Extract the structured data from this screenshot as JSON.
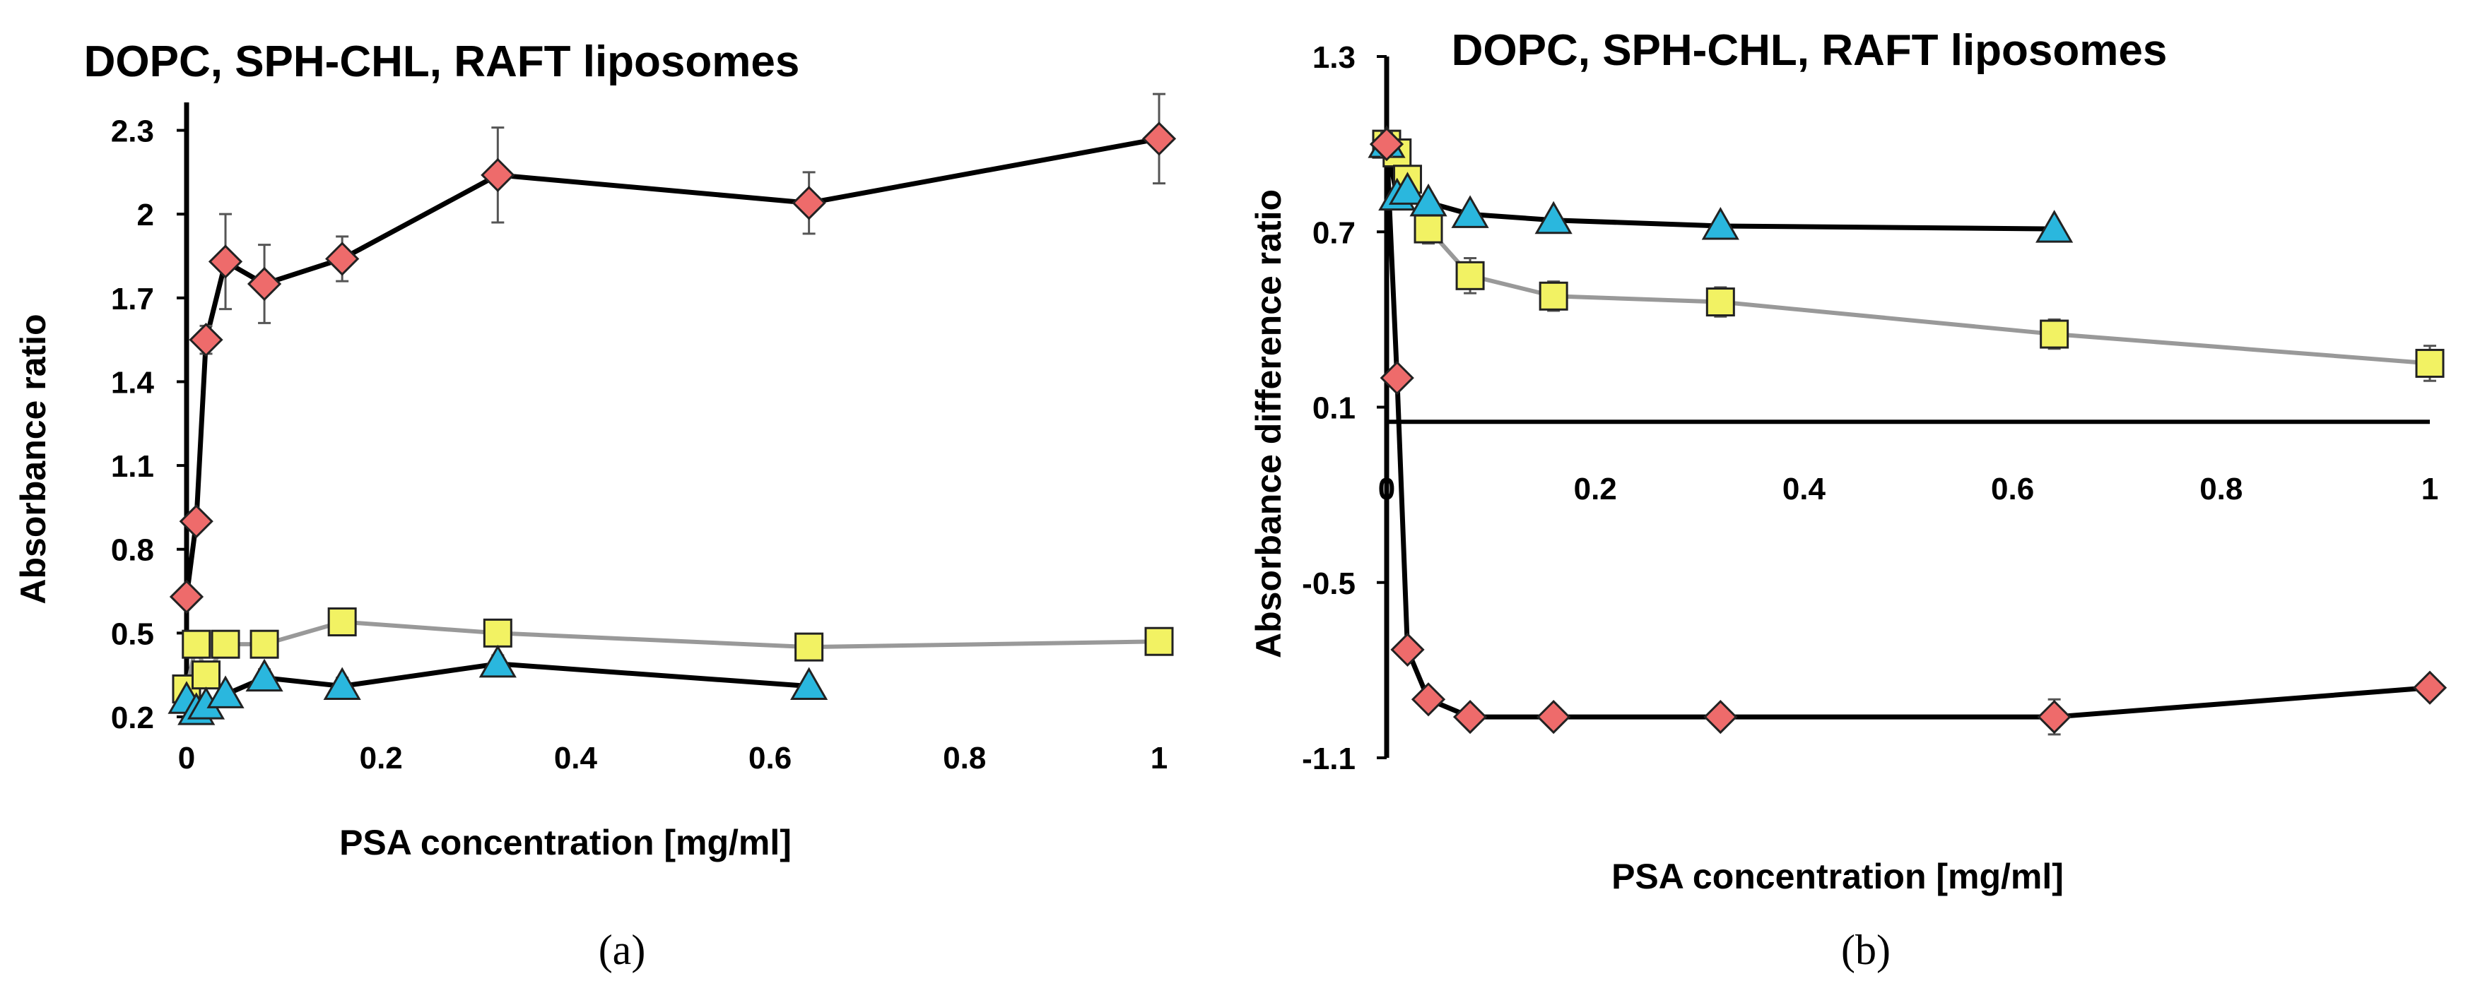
{
  "chart_data": [
    {
      "type": "line",
      "title": "DOPC, SPH-CHL, RAFT liposomes",
      "xlabel": "PSA concentration [mg/ml]",
      "ylabel": "Absorbance ratio",
      "caption": "(a)",
      "xlim": [
        0,
        1
      ],
      "ylim": [
        0.2,
        2.4
      ],
      "xticks": [
        "0",
        "0.2",
        "0.4",
        "0.6",
        "0.8",
        "1"
      ],
      "yticks": [
        "0.2",
        "0.5",
        "0.8",
        "1.1",
        "1.4",
        "1.7",
        "2",
        "2.3"
      ],
      "grid": false,
      "series": [
        {
          "marker": "diamond",
          "color": "#ee6b6b",
          "line": "#000000",
          "x": [
            0,
            0.01,
            0.02,
            0.04,
            0.08,
            0.16,
            0.32,
            0.64,
            1
          ],
          "y": [
            0.63,
            0.9,
            1.55,
            1.83,
            1.75,
            1.84,
            2.14,
            2.04,
            2.27
          ],
          "err": [
            0.03,
            0.03,
            0.05,
            0.17,
            0.14,
            0.08,
            0.17,
            0.11,
            0.16
          ]
        },
        {
          "marker": "square",
          "color": "#f2f263",
          "line": "#999999",
          "x": [
            0,
            0.01,
            0.02,
            0.04,
            0.08,
            0.16,
            0.32,
            0.64,
            1
          ],
          "y": [
            0.3,
            0.46,
            0.35,
            0.46,
            0.46,
            0.54,
            0.5,
            0.45,
            0.47
          ],
          "err": [
            0.02,
            0.02,
            0.02,
            0.03,
            0.03,
            0.04,
            0.04,
            0.03,
            0.03
          ]
        },
        {
          "marker": "triangle",
          "color": "#2ab7de",
          "line": "#000000",
          "x": [
            0,
            0.01,
            0.02,
            0.04,
            0.08,
            0.16,
            0.32,
            0.64
          ],
          "y": [
            0.26,
            0.22,
            0.24,
            0.28,
            0.34,
            0.31,
            0.39,
            0.31
          ],
          "err": [
            0.02,
            0.02,
            0.02,
            0.02,
            0.03,
            0.03,
            0.03,
            0.02
          ]
        }
      ]
    },
    {
      "type": "line",
      "title": "DOPC, SPH-CHL, RAFT liposomes",
      "xlabel": "PSA concentration [mg/ml]",
      "ylabel": "Absorbance difference ratio",
      "caption": "(b)",
      "xlim": [
        0,
        1
      ],
      "ylim": [
        -1.1,
        1.3
      ],
      "xticks": [
        "0",
        "0.2",
        "0.4",
        "0.6",
        "0.8",
        "1"
      ],
      "yticks": [
        "1.3",
        "0.7",
        "0.1",
        "-0.5",
        "-1.1"
      ],
      "grid": false,
      "series": [
        {
          "marker": "diamond",
          "color": "#ee6b6b",
          "line": "#000000",
          "x": [
            0,
            0.01,
            0.02,
            0.04,
            0.08,
            0.16,
            0.32,
            0.64,
            1
          ],
          "y": [
            1.0,
            0.2,
            -0.73,
            -0.9,
            -0.96,
            -0.96,
            -0.96,
            -0.96,
            -0.86
          ],
          "err": [
            0.04,
            0.03,
            0.03,
            0.03,
            0.03,
            0.03,
            0.03,
            0.06,
            0.03
          ]
        },
        {
          "marker": "square",
          "color": "#f2f263",
          "line": "#999999",
          "x": [
            0,
            0.01,
            0.02,
            0.04,
            0.08,
            0.16,
            0.32,
            0.64,
            1
          ],
          "y": [
            1.0,
            0.97,
            0.88,
            0.71,
            0.55,
            0.48,
            0.46,
            0.35,
            0.25
          ],
          "err": [
            0.03,
            0.03,
            0.04,
            0.05,
            0.06,
            0.05,
            0.05,
            0.05,
            0.06
          ]
        },
        {
          "marker": "triangle",
          "color": "#2ab7de",
          "line": "#000000",
          "x": [
            0,
            0.01,
            0.02,
            0.04,
            0.08,
            0.16,
            0.32,
            0.64
          ],
          "y": [
            1.0,
            0.82,
            0.84,
            0.8,
            0.76,
            0.74,
            0.72,
            0.71
          ],
          "err": [
            0.02,
            0.02,
            0.02,
            0.02,
            0.02,
            0.02,
            0.02,
            0.02
          ]
        }
      ]
    }
  ]
}
